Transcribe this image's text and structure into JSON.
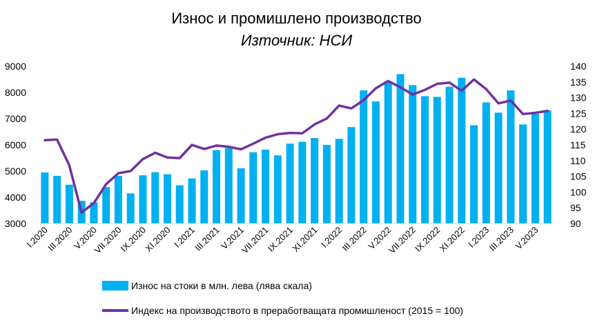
{
  "chart_data": {
    "type": "bar+line",
    "title": "Износ и промишлено производство",
    "subtitle": "Източник: НСИ",
    "categories": [
      "I.2020",
      "II.2020",
      "III.2020",
      "IV.2020",
      "V.2020",
      "VI.2020",
      "VII.2020",
      "VIII.2020",
      "IX.2020",
      "X.2020",
      "XI.2020",
      "XII.2020",
      "I.2021",
      "II.2021",
      "III.2021",
      "IV.2021",
      "V.2021",
      "VI.2021",
      "VII.2021",
      "VIII.2021",
      "IX.2021",
      "X.2021",
      "XI.2021",
      "XII.2021",
      "I.2022",
      "II.2022",
      "III.2022",
      "IV.2022",
      "V.2022",
      "VI.2022",
      "VII.2022",
      "VIII.2022",
      "IX.2022",
      "X.2022",
      "XI.2022",
      "XII.2022",
      "I.2023",
      "II.2023",
      "III.2023",
      "IV.2023",
      "V.2023",
      "VI.2023"
    ],
    "x_tick_labels": [
      "I.2020",
      "III.2020",
      "V.2020",
      "VII.2020",
      "IX.2020",
      "XI.2020",
      "I.2021",
      "III.2021",
      "V.2021",
      "VII.2021",
      "IX.2021",
      "XI.2021",
      "I.2022",
      "III.2022",
      "V.2022",
      "VII.2022",
      "IX.2022",
      "XI.2022",
      "I.2023",
      "III.2023",
      "V.2023"
    ],
    "series": [
      {
        "name": "Износ на стоки в млн. лева (лява скала)",
        "kind": "bar",
        "axis": "left",
        "color": "#00B0F0",
        "values": [
          4950,
          4820,
          4480,
          3870,
          3810,
          4390,
          4820,
          4150,
          4840,
          4960,
          4880,
          4460,
          4720,
          5030,
          5800,
          5880,
          5110,
          5720,
          5820,
          5600,
          6050,
          6120,
          6260,
          6000,
          6230,
          6680,
          8080,
          7660,
          8400,
          8700,
          8280,
          7860,
          7830,
          8220,
          8560,
          6750,
          7620,
          7230,
          8080,
          6780,
          7180,
          7320
        ]
      },
      {
        "name": "Индекс на производството в преработващата промишленост (2015 = 100)",
        "kind": "line",
        "axis": "right",
        "color": "#7030A0",
        "values": [
          116.5,
          116.7,
          108.5,
          93.5,
          96.5,
          102.5,
          106.0,
          106.7,
          110.5,
          112.5,
          111.0,
          110.8,
          115.0,
          113.7,
          114.8,
          114.4,
          113.6,
          115.4,
          117.3,
          118.4,
          118.8,
          118.7,
          121.5,
          123.4,
          127.5,
          126.6,
          129.2,
          133.0,
          135.3,
          133.3,
          131.0,
          132.5,
          134.4,
          134.8,
          132.2,
          135.8,
          132.7,
          128.2,
          129.1,
          124.8,
          125.2,
          125.8
        ]
      }
    ],
    "y_left": {
      "min": 3000,
      "max": 9000,
      "ticks": [
        3000,
        4000,
        5000,
        6000,
        7000,
        8000,
        9000
      ]
    },
    "y_right": {
      "min": 90,
      "max": 140,
      "ticks": [
        90,
        95,
        100,
        105,
        110,
        115,
        120,
        125,
        130,
        135,
        140
      ]
    },
    "legend_position": "bottom",
    "grid": false
  }
}
